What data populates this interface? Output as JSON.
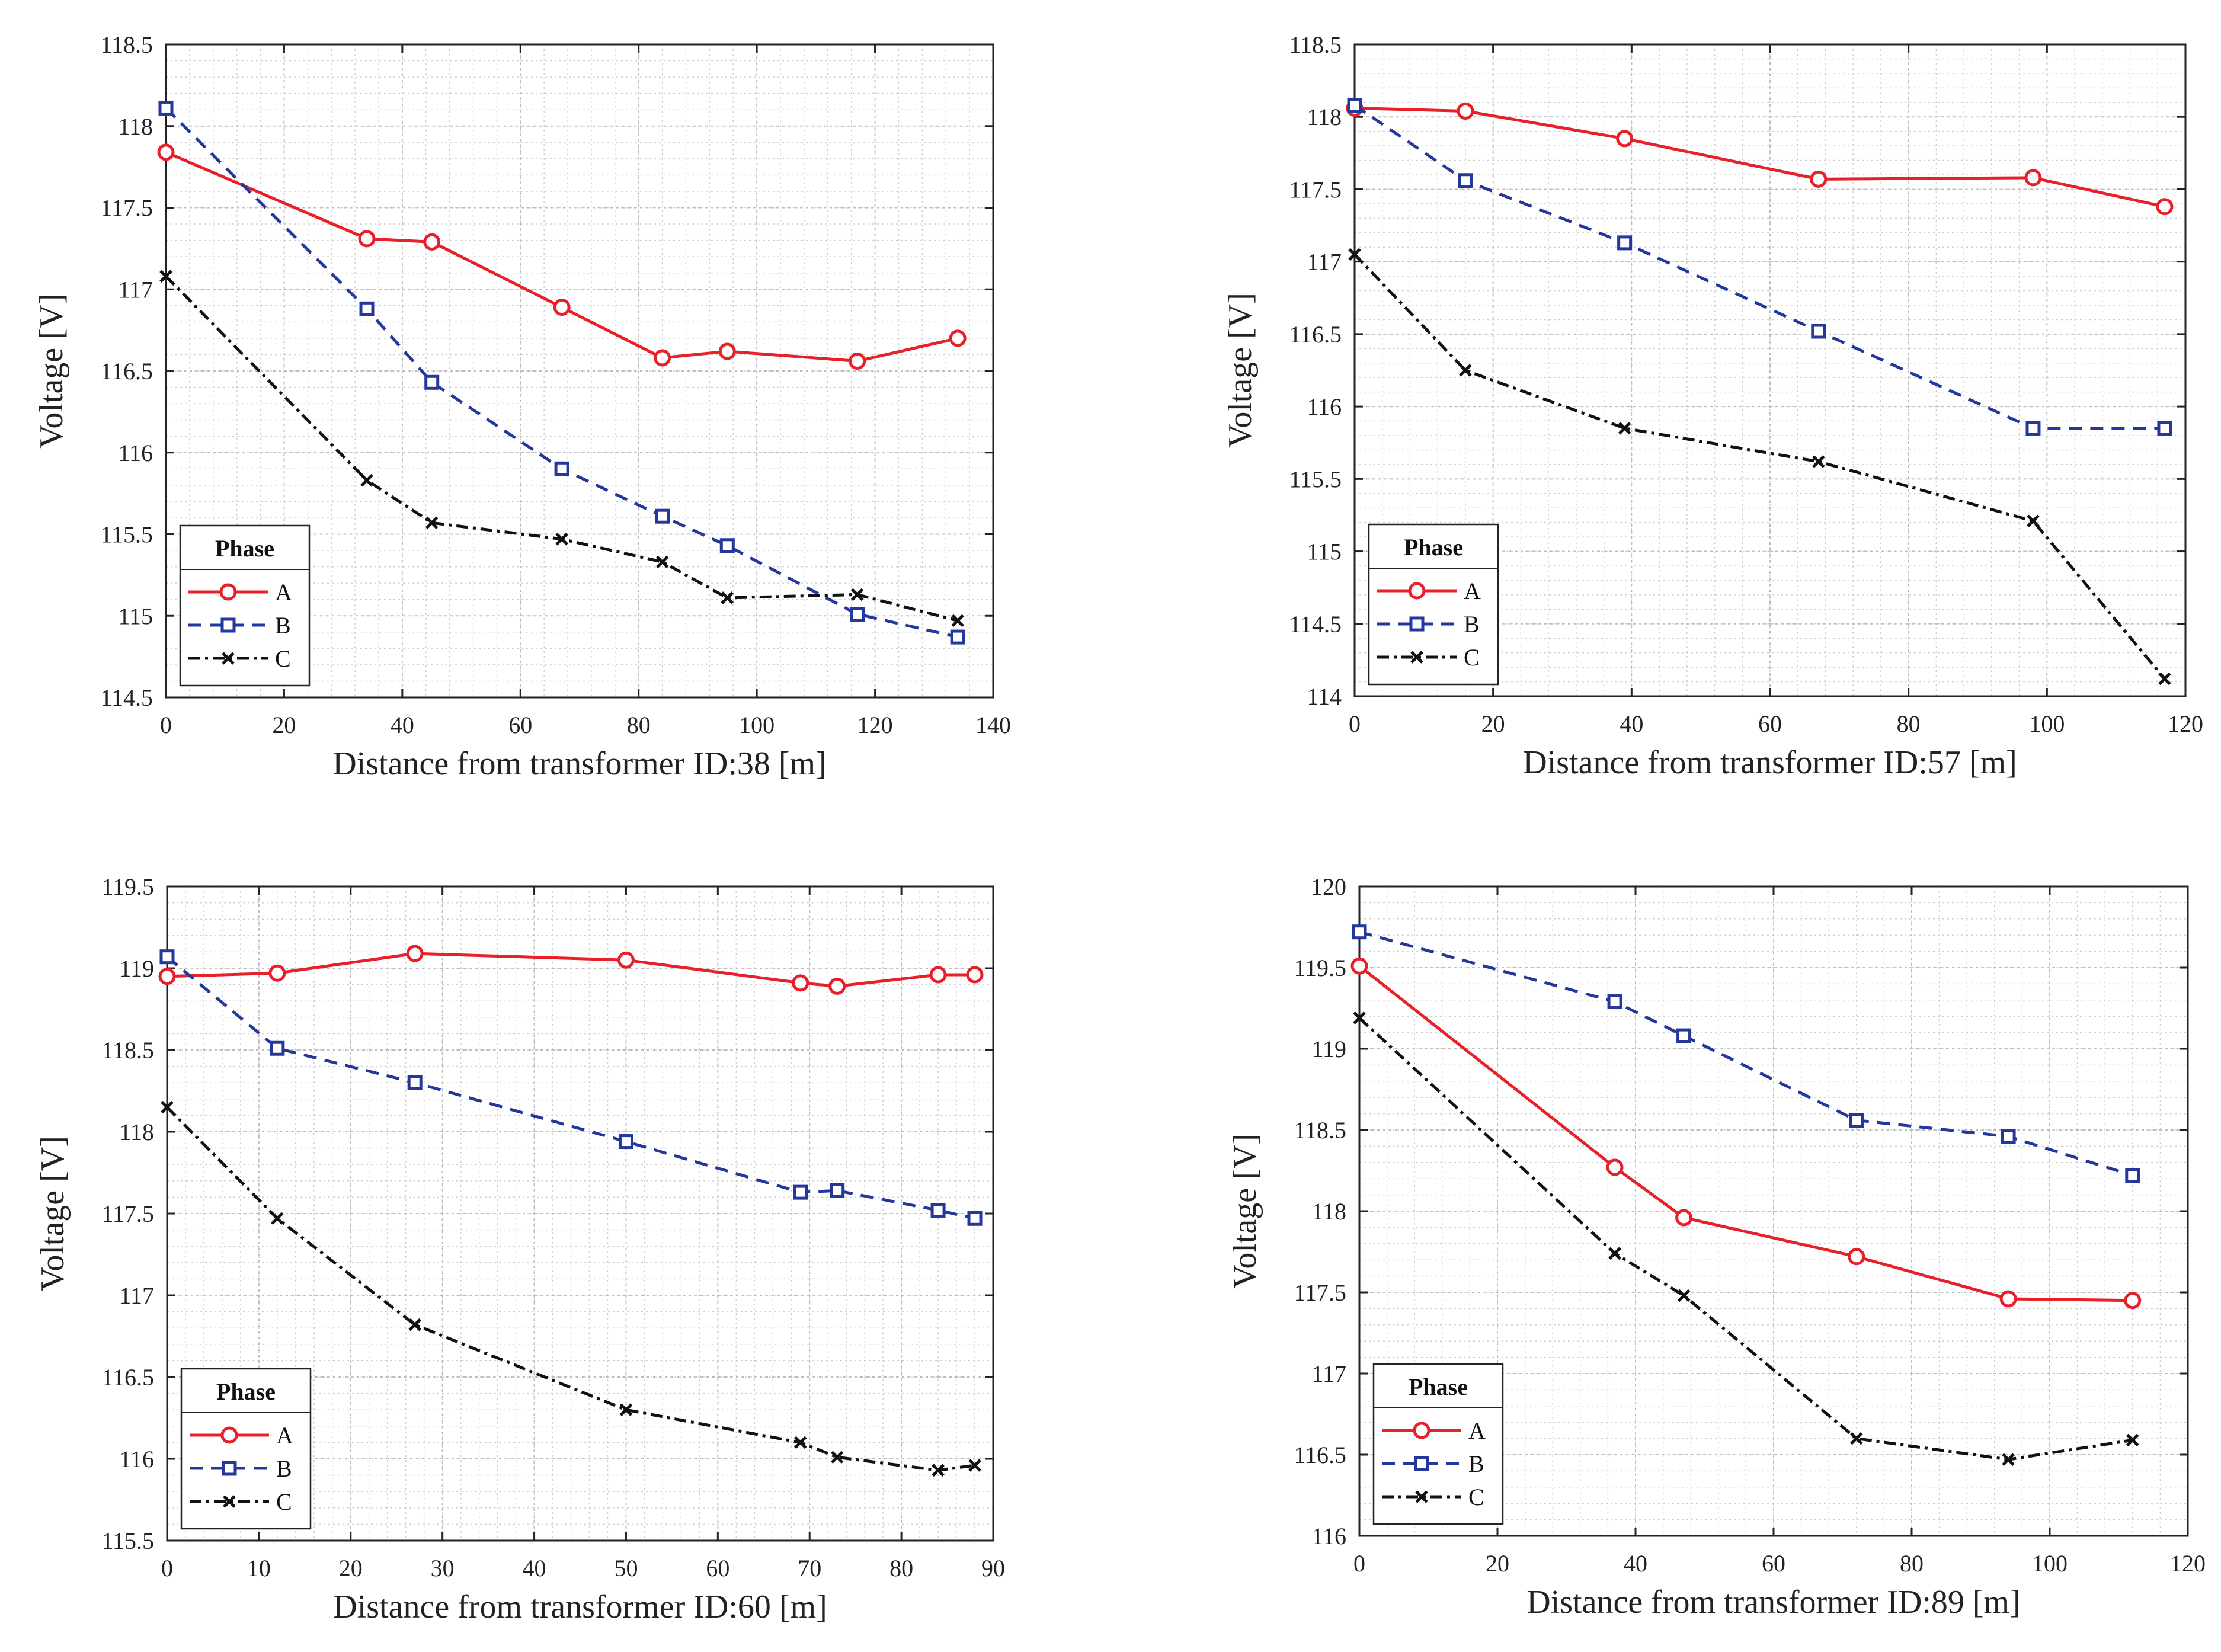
{
  "colors": {
    "A": "#e8202a",
    "B": "#24379c",
    "C": "#111111",
    "minor_grid": "#d0d0d0",
    "major_grid": "#bdbdbd",
    "axis": "#222222"
  },
  "legend_title": "Phase",
  "chart_data": [
    {
      "type": "line",
      "xlabel": "Distance from transformer ID:38  [m]",
      "ylabel": "Voltage [V]",
      "xlim": [
        0,
        140
      ],
      "ylim": [
        114.5,
        118.5
      ],
      "xticks": [
        0,
        20,
        40,
        60,
        80,
        100,
        120,
        140
      ],
      "yticks": [
        114.5,
        115,
        115.5,
        116,
        116.5,
        117,
        117.5,
        118,
        118.5
      ],
      "ytick_labels": [
        "114.5",
        "115",
        "115.5",
        "116",
        "116.5",
        "117",
        "117.5",
        "118",
        "118.5"
      ],
      "grid": true,
      "legend_position": "bottom-left",
      "series": [
        {
          "name": "A",
          "x": [
            0,
            34,
            45,
            67,
            84,
            95,
            117,
            134
          ],
          "values": [
            117.84,
            117.31,
            117.29,
            116.89,
            116.58,
            116.62,
            116.56,
            116.7
          ]
        },
        {
          "name": "B",
          "x": [
            0,
            34,
            45,
            67,
            84,
            95,
            117,
            134
          ],
          "values": [
            118.11,
            116.88,
            116.43,
            115.9,
            115.61,
            115.43,
            115.01,
            114.87
          ]
        },
        {
          "name": "C",
          "x": [
            0,
            34,
            45,
            67,
            84,
            95,
            117,
            134
          ],
          "values": [
            117.08,
            115.83,
            115.57,
            115.47,
            115.33,
            115.11,
            115.13,
            114.97
          ]
        }
      ]
    },
    {
      "type": "line",
      "xlabel": "Distance from transformer ID:57 [m]",
      "ylabel": "Voltage [V]",
      "xlim": [
        0,
        120
      ],
      "ylim": [
        114,
        118.5
      ],
      "xticks": [
        0,
        20,
        40,
        60,
        80,
        100,
        120
      ],
      "yticks": [
        114,
        114.5,
        115,
        115.5,
        116,
        116.5,
        117,
        117.5,
        118,
        118.5
      ],
      "ytick_labels": [
        "114",
        "114.5",
        "115",
        "115.5",
        "116",
        "116.5",
        "117",
        "117.5",
        "118",
        "118.5"
      ],
      "grid": true,
      "legend_position": "bottom-left",
      "series": [
        {
          "name": "A",
          "x": [
            0,
            16,
            39,
            67,
            98,
            117
          ],
          "values": [
            118.06,
            118.04,
            117.85,
            117.57,
            117.58,
            117.38
          ]
        },
        {
          "name": "B",
          "x": [
            0,
            16,
            39,
            67,
            98,
            117
          ],
          "values": [
            118.08,
            117.56,
            117.13,
            116.52,
            115.85,
            115.85
          ]
        },
        {
          "name": "C",
          "x": [
            0,
            16,
            39,
            67,
            98,
            117
          ],
          "values": [
            117.05,
            116.25,
            115.85,
            115.62,
            115.21,
            114.12
          ]
        }
      ]
    },
    {
      "type": "line",
      "xlabel": "Distance from transformer ID:60 [m]",
      "ylabel": "Voltage [V]",
      "xlim": [
        0,
        90
      ],
      "ylim": [
        115.5,
        119.5
      ],
      "xticks": [
        0,
        10,
        20,
        30,
        40,
        50,
        60,
        70,
        80,
        90
      ],
      "yticks": [
        115.5,
        116,
        116.5,
        117,
        117.5,
        118,
        118.5,
        119,
        119.5
      ],
      "ytick_labels": [
        "115.5",
        "116",
        "116.5",
        "117",
        "117.5",
        "118",
        "118.5",
        "119",
        "119.5"
      ],
      "grid": true,
      "legend_position": "bottom-left",
      "series": [
        {
          "name": "A",
          "x": [
            0,
            12,
            27,
            50,
            69,
            73,
            84,
            88
          ],
          "values": [
            118.95,
            118.97,
            119.09,
            119.05,
            118.91,
            118.89,
            118.96,
            118.96
          ]
        },
        {
          "name": "B",
          "x": [
            0,
            12,
            27,
            50,
            69,
            73,
            84,
            88
          ],
          "values": [
            119.07,
            118.51,
            118.3,
            117.94,
            117.63,
            117.64,
            117.52,
            117.47
          ]
        },
        {
          "name": "C",
          "x": [
            0,
            12,
            27,
            50,
            69,
            73,
            84,
            88
          ],
          "values": [
            118.15,
            117.47,
            116.82,
            116.3,
            116.1,
            116.01,
            115.93,
            115.96
          ]
        }
      ]
    },
    {
      "type": "line",
      "xlabel": "Distance from transformer ID:89 [m]",
      "ylabel": "Voltage [V]",
      "xlim": [
        0,
        120
      ],
      "ylim": [
        116,
        120
      ],
      "xticks": [
        0,
        20,
        40,
        60,
        80,
        100,
        120
      ],
      "yticks": [
        116,
        116.5,
        117,
        117.5,
        118,
        118.5,
        119,
        119.5,
        120
      ],
      "ytick_labels": [
        "116",
        "116.5",
        "117",
        "117.5",
        "118",
        "118.5",
        "119",
        "119.5",
        "120"
      ],
      "grid": true,
      "legend_position": "bottom-left",
      "series": [
        {
          "name": "A",
          "x": [
            0,
            37,
            47,
            72,
            94,
            112
          ],
          "values": [
            119.51,
            118.27,
            117.96,
            117.72,
            117.46,
            117.45
          ]
        },
        {
          "name": "B",
          "x": [
            0,
            37,
            47,
            72,
            94,
            112
          ],
          "values": [
            119.72,
            119.29,
            119.08,
            118.56,
            118.46,
            118.22
          ]
        },
        {
          "name": "C",
          "x": [
            0,
            37,
            47,
            72,
            94,
            112
          ],
          "values": [
            119.19,
            117.74,
            117.48,
            116.6,
            116.47,
            116.59
          ]
        }
      ]
    }
  ]
}
